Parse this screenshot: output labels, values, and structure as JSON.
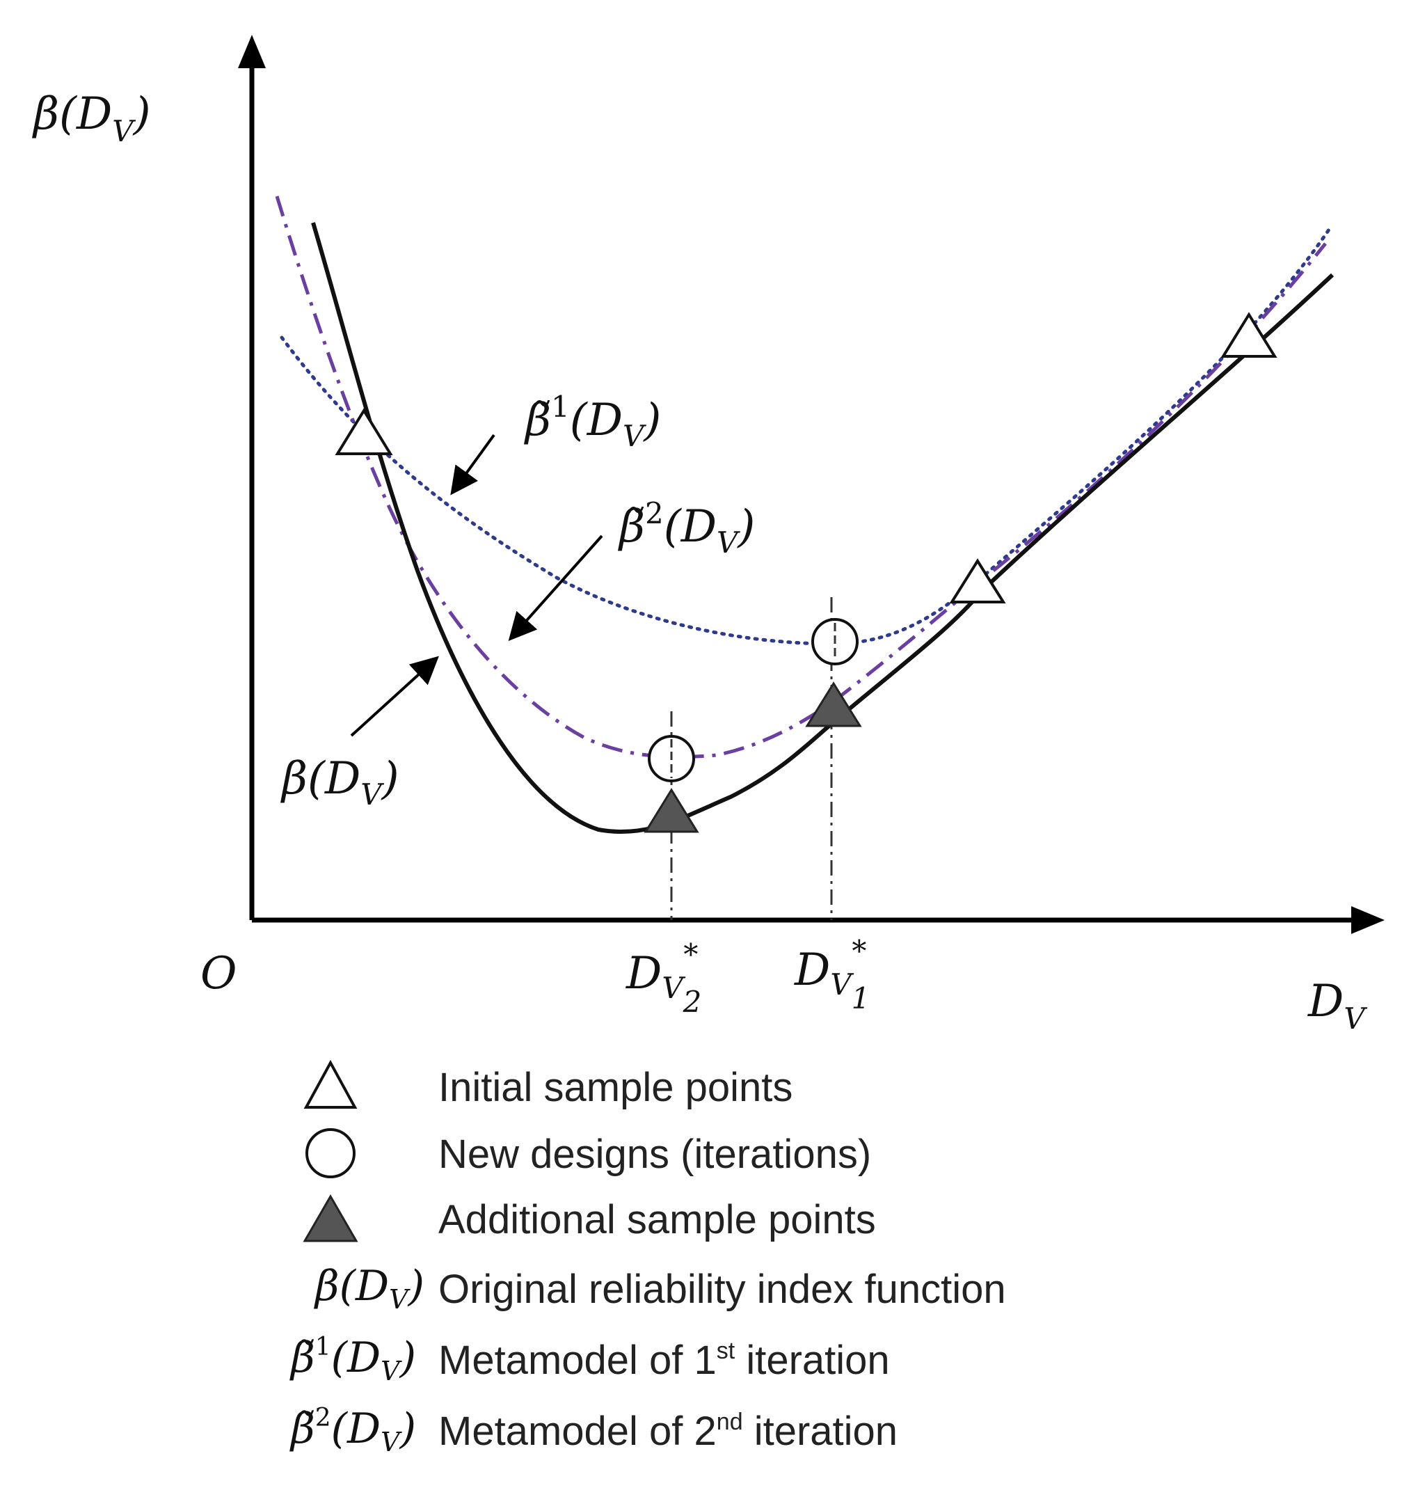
{
  "axes": {
    "y_label": {
      "base": "β(D",
      "sub": "V",
      "close": ")"
    },
    "x_label": {
      "base": "D",
      "sub": "V"
    },
    "origin_label": "O",
    "ticks": [
      {
        "id": "dv2",
        "base": "D",
        "sub": "V",
        "subsub": "2",
        "star": "*"
      },
      {
        "id": "dv1",
        "base": "D",
        "sub": "V",
        "subsub": "1",
        "star": "*"
      }
    ]
  },
  "annotations": {
    "beta1": {
      "base": "β̃",
      "sup": "1",
      "arg_open": "(D",
      "sub": "V",
      "arg_close": ")"
    },
    "beta2": {
      "base": "β̃",
      "sup": "2",
      "arg_open": "(D",
      "sub": "V",
      "arg_close": ")"
    },
    "beta": {
      "base": "β(D",
      "sub": "V",
      "close": ")"
    }
  },
  "legend": {
    "items": [
      {
        "symbol": "open-triangle",
        "text": "Initial sample points"
      },
      {
        "symbol": "open-circle",
        "text": "New designs (iterations)"
      },
      {
        "symbol": "filled-triangle",
        "text": "Additional sample points"
      },
      {
        "symbol": "math",
        "math_base": "β(D",
        "math_sub": "V",
        "math_close": ")",
        "text": "Original reliability index function"
      },
      {
        "symbol": "math",
        "math_base": "β̃",
        "math_sup": "1",
        "math_arg": "(D",
        "math_sub": "V",
        "math_close": ")",
        "text_pre": "Metamodel of 1",
        "text_sup": "st",
        "text_post": " iteration"
      },
      {
        "symbol": "math",
        "math_base": "β̃",
        "math_sup": "2",
        "math_arg": "(D",
        "math_sub": "V",
        "math_close": ")",
        "text_pre": "Metamodel of 2",
        "text_sup": "nd",
        "text_post": " iteration"
      }
    ]
  },
  "colors": {
    "axis": "#000000",
    "original_curve": "#111111",
    "metamodel_1": "#2e3a8c",
    "metamodel_2": "#6a3fa0",
    "filled_marker": "#555555",
    "open_marker_stroke": "#111111"
  }
}
